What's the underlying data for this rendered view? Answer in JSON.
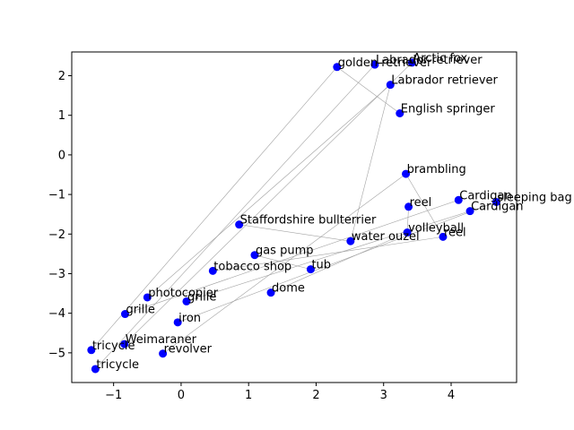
{
  "chart_data": {
    "type": "scatter",
    "title": "",
    "xlabel": "",
    "ylabel": "",
    "xlim": [
      -1.62,
      4.97
    ],
    "ylim": [
      -5.75,
      2.6
    ],
    "xticks": [
      -1,
      0,
      1,
      2,
      3,
      4
    ],
    "yticks": [
      -5,
      -4,
      -3,
      -2,
      -1,
      0,
      1,
      2
    ],
    "point_color": "#0000ff",
    "line_color": "#999999",
    "points": [
      {
        "label": "golden retriever",
        "x": 2.31,
        "y": 2.22
      },
      {
        "label": "Labrador retriever",
        "x": 2.87,
        "y": 2.28
      },
      {
        "label": "Arctic fox",
        "x": 3.42,
        "y": 2.33
      },
      {
        "label": "Labrador retriever",
        "x": 3.1,
        "y": 1.77
      },
      {
        "label": "English springer",
        "x": 3.24,
        "y": 1.05
      },
      {
        "label": "brambling",
        "x": 3.33,
        "y": -0.48
      },
      {
        "label": "Cardigan",
        "x": 4.11,
        "y": -1.14
      },
      {
        "label": "sleeping bag",
        "x": 4.67,
        "y": -1.19
      },
      {
        "label": "Cardigan",
        "x": 4.28,
        "y": -1.42
      },
      {
        "label": "reel",
        "x": 3.37,
        "y": -1.31
      },
      {
        "label": "volleyball",
        "x": 3.35,
        "y": -1.96
      },
      {
        "label": "reel",
        "x": 3.88,
        "y": -2.07
      },
      {
        "label": "water ouzel",
        "x": 2.51,
        "y": -2.18
      },
      {
        "label": "Staffordshire bullterrier",
        "x": 0.86,
        "y": -1.76
      },
      {
        "label": "gas pump",
        "x": 1.09,
        "y": -2.53
      },
      {
        "label": "tobacco shop",
        "x": 0.47,
        "y": -2.93
      },
      {
        "label": "tub",
        "x": 1.92,
        "y": -2.89
      },
      {
        "label": "dome",
        "x": 1.33,
        "y": -3.48
      },
      {
        "label": "photocopier",
        "x": -0.5,
        "y": -3.6
      },
      {
        "label": "grille",
        "x": 0.08,
        "y": -3.7
      },
      {
        "label": "grille",
        "x": -0.83,
        "y": -4.02
      },
      {
        "label": "iron",
        "x": -0.05,
        "y": -4.23
      },
      {
        "label": "Weimaraner",
        "x": -0.84,
        "y": -4.78
      },
      {
        "label": "tricycle",
        "x": -1.33,
        "y": -4.93
      },
      {
        "label": "revolver",
        "x": -0.27,
        "y": -5.02
      },
      {
        "label": "tricycle",
        "x": -1.27,
        "y": -5.41
      }
    ],
    "connections": [
      [
        0,
        23
      ],
      [
        1,
        25
      ],
      [
        2,
        22
      ],
      [
        3,
        18
      ],
      [
        4,
        0
      ],
      [
        5,
        24
      ],
      [
        5,
        11
      ],
      [
        6,
        20
      ],
      [
        7,
        21
      ],
      [
        8,
        19
      ],
      [
        9,
        10
      ],
      [
        10,
        17
      ],
      [
        11,
        15
      ],
      [
        12,
        13
      ],
      [
        14,
        16
      ],
      [
        12,
        3
      ]
    ]
  }
}
